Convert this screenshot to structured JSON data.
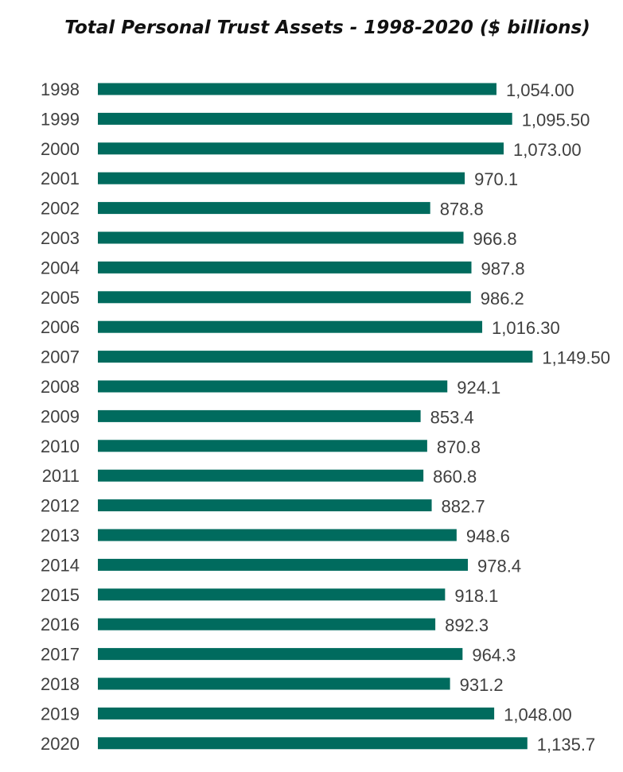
{
  "chart_data": {
    "type": "bar",
    "orientation": "horizontal",
    "title": "Total Personal Trust Assets - 1998-2020 ($ billions)",
    "xlabel": "",
    "ylabel": "",
    "grid": false,
    "legend": "none",
    "bar_color": "#006b5e",
    "xlim": [
      0,
      1200
    ],
    "categories": [
      "1998",
      "1999",
      "2000",
      "2001",
      "2002",
      "2003",
      "2004",
      "2005",
      "2006",
      "2007",
      "2008",
      "2009",
      "2010",
      "2011",
      "2012",
      "2013",
      "2014",
      "2015",
      "2016",
      "2017",
      "2018",
      "2019",
      "2020"
    ],
    "values": [
      1054.0,
      1095.5,
      1073.0,
      970.1,
      878.8,
      966.8,
      987.8,
      986.2,
      1016.3,
      1149.5,
      924.1,
      853.4,
      870.8,
      860.8,
      882.7,
      948.6,
      978.4,
      918.1,
      892.3,
      964.3,
      931.2,
      1048.0,
      1135.7
    ],
    "data_labels": [
      "1,054.00",
      "1,095.50",
      "1,073.00",
      "970.1",
      "878.8",
      "966.8",
      "987.8",
      "986.2",
      "1,016.30",
      "1,149.50",
      "924.1",
      "853.4",
      "870.8",
      "860.8",
      "882.7",
      "948.6",
      "978.4",
      "918.1",
      "892.3",
      "964.3",
      "931.2",
      "1,048.00",
      "1,135.7"
    ]
  }
}
